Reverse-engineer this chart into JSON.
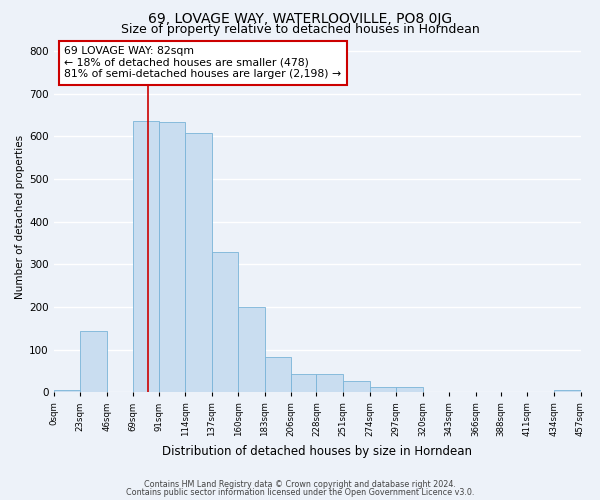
{
  "title": "69, LOVAGE WAY, WATERLOOVILLE, PO8 0JG",
  "subtitle": "Size of property relative to detached houses in Horndean",
  "xlabel": "Distribution of detached houses by size in Horndean",
  "ylabel": "Number of detached properties",
  "bar_color": "#c9ddf0",
  "bar_edge_color": "#7ab4d8",
  "bin_edges": [
    0,
    23,
    46,
    69,
    91,
    114,
    137,
    160,
    183,
    206,
    228,
    251,
    274,
    297,
    320,
    343,
    366,
    388,
    411,
    434,
    457
  ],
  "bar_heights": [
    5,
    143,
    0,
    636,
    633,
    607,
    330,
    201,
    83,
    43,
    43,
    27,
    12,
    12,
    0,
    0,
    0,
    0,
    0,
    5
  ],
  "tick_labels": [
    "0sqm",
    "23sqm",
    "46sqm",
    "69sqm",
    "91sqm",
    "114sqm",
    "137sqm",
    "160sqm",
    "183sqm",
    "206sqm",
    "228sqm",
    "251sqm",
    "274sqm",
    "297sqm",
    "320sqm",
    "343sqm",
    "366sqm",
    "388sqm",
    "411sqm",
    "434sqm",
    "457sqm"
  ],
  "ylim": [
    0,
    820
  ],
  "yticks": [
    0,
    100,
    200,
    300,
    400,
    500,
    600,
    700,
    800
  ],
  "vline_x": 82,
  "vline_color": "#cc0000",
  "annotation_text": "69 LOVAGE WAY: 82sqm\n← 18% of detached houses are smaller (478)\n81% of semi-detached houses are larger (2,198) →",
  "annotation_box_color": "#ffffff",
  "annotation_box_edge_color": "#cc0000",
  "footer_line1": "Contains HM Land Registry data © Crown copyright and database right 2024.",
  "footer_line2": "Contains public sector information licensed under the Open Government Licence v3.0.",
  "bg_color": "#edf2f9",
  "grid_color": "#ffffff",
  "title_fontsize": 10,
  "subtitle_fontsize": 9
}
